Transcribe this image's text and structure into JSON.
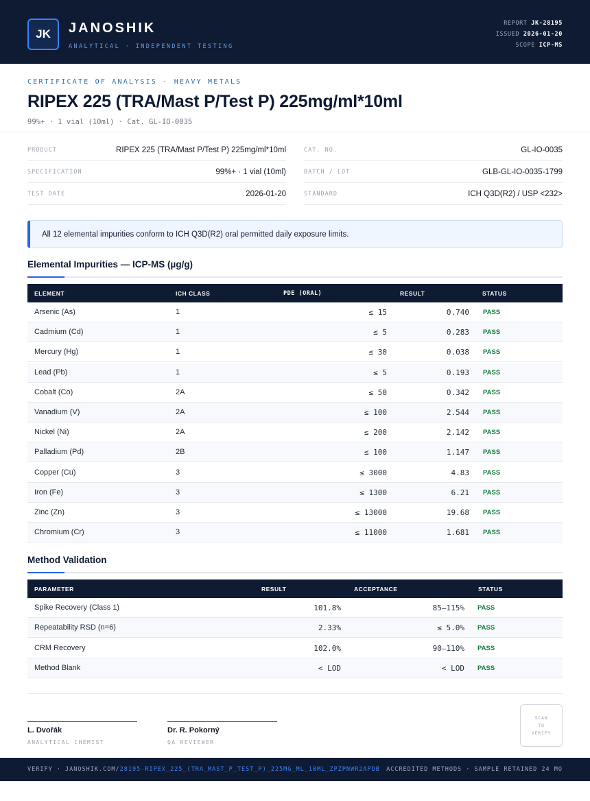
{
  "header": {
    "logo": "JK",
    "brand": "JANOSHIK",
    "tagline": "ANALYTICAL · INDEPENDENT TESTING",
    "report_label": "REPORT",
    "report_value": "JK-28195",
    "issued_label": "ISSUED",
    "issued_value": "2026-01-20",
    "scope_label": "SCOPE",
    "scope_value": "ICP-MS"
  },
  "title_block": {
    "cert_label": "CERTIFICATE OF ANALYSIS · HEAVY METALS",
    "title": "RIPEX 225 (TRA/Mast P/Test P) 225mg/ml*10ml",
    "subtitle": "99%+ · 1 vial (10ml)  ·  Cat. GL-IO-0035"
  },
  "info": {
    "product_label": "PRODUCT",
    "product": "RIPEX 225 (TRA/Mast P/Test P) 225mg/ml*10ml",
    "spec_label": "SPECIFICATION",
    "spec": "99%+ · 1 vial (10ml)",
    "date_label": "TEST DATE",
    "date": "2026-01-20",
    "cat_label": "CAT. NO.",
    "cat": "GL-IO-0035",
    "batch_label": "BATCH / LOT",
    "batch": "GLB-GL-IO-0035-1799",
    "standard_label": "STANDARD",
    "standard": "ICH Q3D(R2) / USP <232>"
  },
  "notice": "All 12 elemental impurities conform to ICH Q3D(R2) oral permitted daily exposure limits.",
  "impurities": {
    "title": "Elemental Impurities — ICP-MS (µg/g)",
    "headers": {
      "element": "ELEMENT",
      "class": "ICH CLASS",
      "pde": "PDE (ORAL)",
      "result": "RESULT",
      "status": "STATUS"
    },
    "rows": [
      {
        "element": "Arsenic (As)",
        "class": "1",
        "pde": "≤ 15",
        "result": "0.740",
        "status": "PASS"
      },
      {
        "element": "Cadmium (Cd)",
        "class": "1",
        "pde": "≤ 5",
        "result": "0.283",
        "status": "PASS"
      },
      {
        "element": "Mercury (Hg)",
        "class": "1",
        "pde": "≤ 30",
        "result": "0.038",
        "status": "PASS"
      },
      {
        "element": "Lead (Pb)",
        "class": "1",
        "pde": "≤ 5",
        "result": "0.193",
        "status": "PASS"
      },
      {
        "element": "Cobalt (Co)",
        "class": "2A",
        "pde": "≤ 50",
        "result": "0.342",
        "status": "PASS"
      },
      {
        "element": "Vanadium (V)",
        "class": "2A",
        "pde": "≤ 100",
        "result": "2.544",
        "status": "PASS"
      },
      {
        "element": "Nickel (Ni)",
        "class": "2A",
        "pde": "≤ 200",
        "result": "2.142",
        "status": "PASS"
      },
      {
        "element": "Palladium (Pd)",
        "class": "2B",
        "pde": "≤ 100",
        "result": "1.147",
        "status": "PASS"
      },
      {
        "element": "Copper (Cu)",
        "class": "3",
        "pde": "≤ 3000",
        "result": "4.83",
        "status": "PASS"
      },
      {
        "element": "Iron (Fe)",
        "class": "3",
        "pde": "≤ 1300",
        "result": "6.21",
        "status": "PASS"
      },
      {
        "element": "Zinc (Zn)",
        "class": "3",
        "pde": "≤ 13000",
        "result": "19.68",
        "status": "PASS"
      },
      {
        "element": "Chromium (Cr)",
        "class": "3",
        "pde": "≤ 11000",
        "result": "1.681",
        "status": "PASS"
      }
    ]
  },
  "validation": {
    "title": "Method Validation",
    "headers": {
      "parameter": "PARAMETER",
      "result": "RESULT",
      "acceptance": "ACCEPTANCE",
      "status": "STATUS"
    },
    "rows": [
      {
        "parameter": "Spike Recovery (Class 1)",
        "result": "101.8%",
        "acceptance": "85–115%",
        "status": "PASS"
      },
      {
        "parameter": "Repeatability RSD (n=6)",
        "result": "2.33%",
        "acceptance": "≤ 5.0%",
        "status": "PASS"
      },
      {
        "parameter": "CRM Recovery",
        "result": "102.0%",
        "acceptance": "90–110%",
        "status": "PASS"
      },
      {
        "parameter": "Method Blank",
        "result": "< LOD",
        "acceptance": "< LOD",
        "status": "PASS"
      }
    ]
  },
  "signatures": [
    {
      "name": "L. Dvořák",
      "role": "ANALYTICAL CHEMIST"
    },
    {
      "name": "Dr. R. Pokorný",
      "role": "QA REVIEWER"
    }
  ],
  "scan": {
    "l1": "SCAN",
    "l2": "TO",
    "l3": "VERIFY"
  },
  "footer": {
    "verify_prefix": "VERIFY · JANOSHIK.COM/",
    "verify_link": "28195-RIPEX_225_(TRA_MAST_P_TEST_P)_225MG_ML_10ML_ZPZPNWR2APDB",
    "right": "ACCREDITED METHODS · SAMPLE RETAINED 24 MO"
  },
  "colors": {
    "navy": "#0f1b33",
    "accent": "#2563eb",
    "pass": "#15803d",
    "notice_bg": "#eff6ff"
  }
}
